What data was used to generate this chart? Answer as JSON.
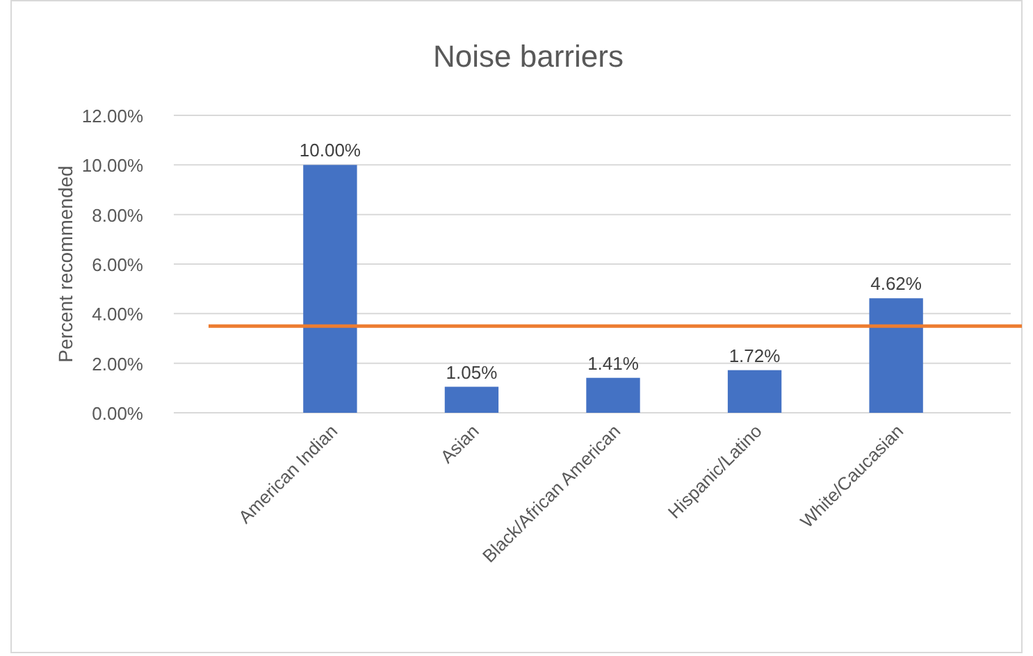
{
  "chart_data": {
    "type": "bar",
    "title": "Noise barriers",
    "ylabel": "Percent recommended",
    "categories": [
      "American Indian",
      "Asian",
      "Black/African American",
      "Hispanic/Latino",
      "White/Caucasian"
    ],
    "values": [
      10,
      1.05,
      1.41,
      1.72,
      4.62
    ],
    "color": "#4472c4",
    "value_labels": [
      "10.00%",
      "1.05%",
      "1.41%",
      "1.72%",
      "4.62%"
    ],
    "ylim": [
      0,
      12
    ],
    "yticks": [
      {
        "value": 0,
        "label": "0.00%"
      },
      {
        "value": 2,
        "label": "2.00%"
      },
      {
        "value": 4,
        "label": "4.00%"
      },
      {
        "value": 6,
        "label": "6.00%"
      },
      {
        "value": 8,
        "label": "8.00%"
      },
      {
        "value": 10,
        "label": "10.00%"
      },
      {
        "value": 12,
        "label": "12.00%"
      }
    ],
    "grid": "y",
    "ref_lines": [
      {
        "axis": "y",
        "value": 3.5,
        "color": "#ed7d31"
      }
    ]
  }
}
